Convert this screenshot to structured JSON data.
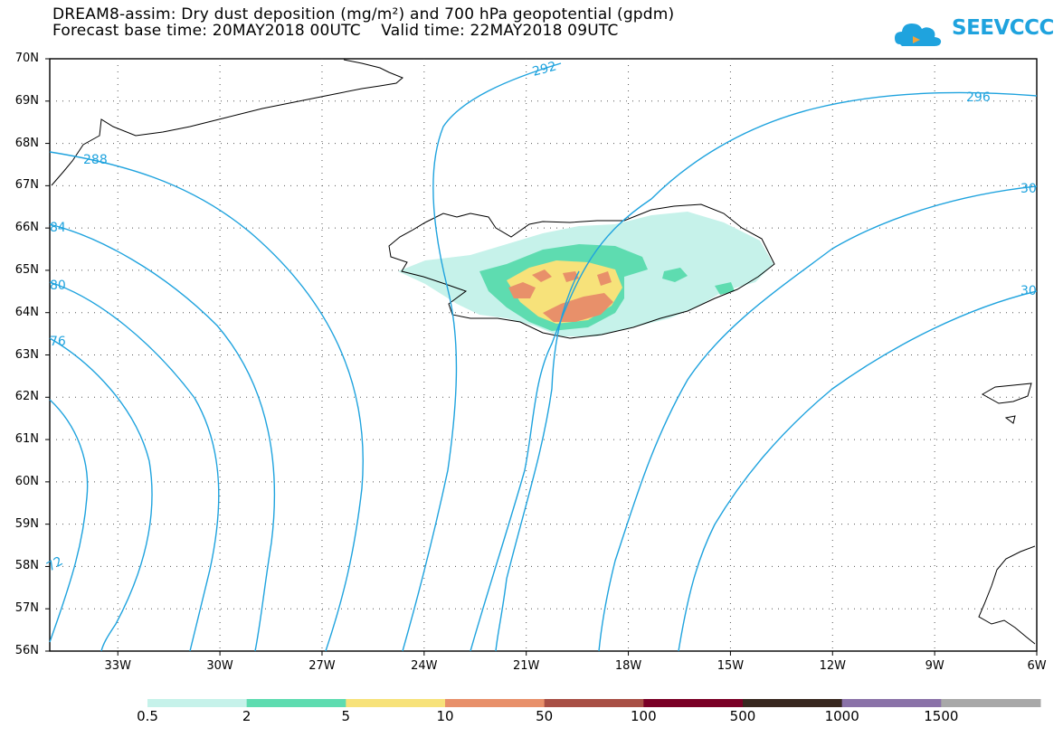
{
  "header": {
    "title_line1": "DREAM8-assim: Dry dust deposition (mg/m²) and 700 hPa geopotential (gpdm)",
    "title_line2": "Forecast base time: 20MAY2018 00UTC    Valid time: 22MAY2018 09UTC",
    "logo_text": "SEEVCCC"
  },
  "map": {
    "lat_labels": [
      "70N",
      "69N",
      "68N",
      "67N",
      "66N",
      "65N",
      "64N",
      "63N",
      "62N",
      "61N",
      "60N",
      "59N",
      "58N",
      "57N",
      "56N"
    ],
    "lon_labels": [
      "33W",
      "30W",
      "27W",
      "24W",
      "21W",
      "18W",
      "15W",
      "12W",
      "9W",
      "6W"
    ],
    "contour_labels": [
      "288",
      "292",
      "296",
      "84",
      "80",
      "76",
      "72",
      "30",
      "30"
    ],
    "contour_color": "#1fa3de"
  },
  "colorbar": {
    "labels": [
      "0.5",
      "2",
      "5",
      "10",
      "50",
      "100",
      "500",
      "1000",
      "1500"
    ],
    "colors": [
      "#c6f2ea",
      "#5edcb0",
      "#f7e27a",
      "#e8906a",
      "#a84f45",
      "#7a0026",
      "#382820",
      "#8a72a8",
      "#a8a8a8"
    ]
  }
}
